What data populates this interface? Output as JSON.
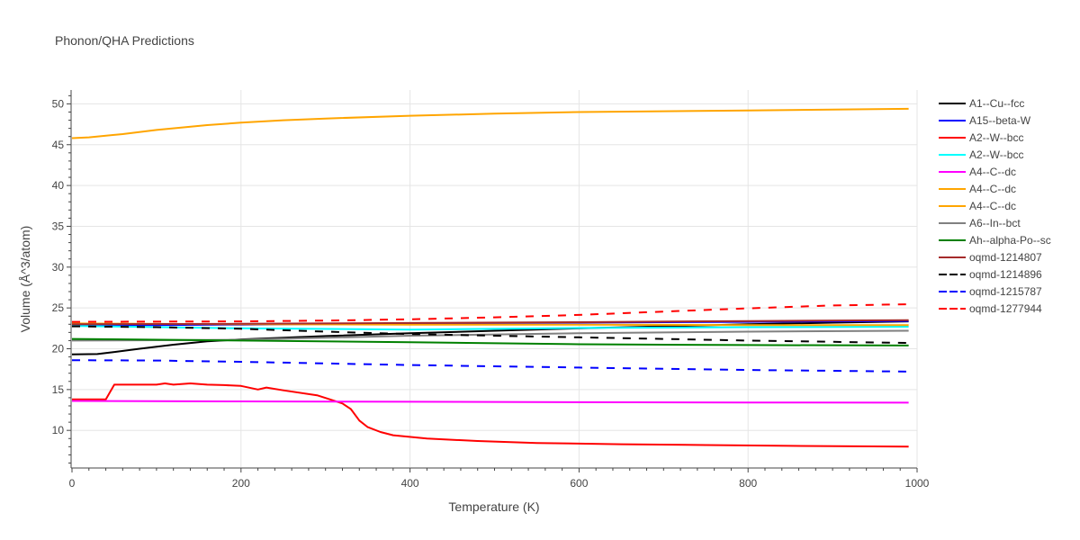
{
  "chart_data": {
    "type": "line",
    "title": "Phonon/QHA Predictions",
    "xlabel": "Temperature (K)",
    "ylabel": "Volume (Å^3/atom)",
    "xlim": [
      0,
      1000
    ],
    "ylim": [
      5.5,
      51.7
    ],
    "x_ticks": [
      0,
      200,
      400,
      600,
      800,
      1000
    ],
    "y_ticks": [
      10,
      15,
      20,
      25,
      30,
      35,
      40,
      45,
      50
    ],
    "grid": true,
    "legend_position": "right",
    "series": [
      {
        "name": "A1--Cu--fcc",
        "color": "#000000",
        "dash": "solid",
        "points": [
          [
            0,
            19.3
          ],
          [
            30,
            19.35
          ],
          [
            50,
            19.6
          ],
          [
            80,
            20.0
          ],
          [
            120,
            20.5
          ],
          [
            160,
            20.9
          ],
          [
            200,
            21.15
          ],
          [
            300,
            21.55
          ],
          [
            400,
            21.9
          ],
          [
            500,
            22.2
          ],
          [
            600,
            22.5
          ],
          [
            700,
            22.75
          ],
          [
            800,
            23.0
          ],
          [
            900,
            23.2
          ],
          [
            990,
            23.35
          ]
        ]
      },
      {
        "name": "A15--beta-W",
        "color": "#0000ff",
        "dash": "solid",
        "points": [
          [
            0,
            22.85
          ],
          [
            200,
            22.95
          ],
          [
            400,
            23.1
          ],
          [
            600,
            23.2
          ],
          [
            800,
            23.3
          ],
          [
            990,
            23.4
          ]
        ]
      },
      {
        "name": "A2--W--bcc",
        "color": "#ff0000",
        "dash": "solid",
        "points": [
          [
            0,
            13.8
          ],
          [
            40,
            13.8
          ],
          [
            50,
            15.6
          ],
          [
            100,
            15.6
          ],
          [
            110,
            15.75
          ],
          [
            120,
            15.6
          ],
          [
            140,
            15.75
          ],
          [
            160,
            15.6
          ],
          [
            180,
            15.55
          ],
          [
            200,
            15.45
          ],
          [
            220,
            15.0
          ],
          [
            230,
            15.25
          ],
          [
            250,
            14.9
          ],
          [
            290,
            14.3
          ],
          [
            305,
            13.8
          ],
          [
            320,
            13.3
          ],
          [
            330,
            12.6
          ],
          [
            340,
            11.2
          ],
          [
            350,
            10.4
          ],
          [
            365,
            9.8
          ],
          [
            380,
            9.4
          ],
          [
            420,
            9.0
          ],
          [
            480,
            8.7
          ],
          [
            550,
            8.45
          ],
          [
            650,
            8.3
          ],
          [
            750,
            8.2
          ],
          [
            850,
            8.1
          ],
          [
            990,
            8.0
          ]
        ]
      },
      {
        "name": "A2--W--bcc",
        "color": "#00ffff",
        "dash": "solid",
        "points": [
          [
            0,
            22.8
          ],
          [
            200,
            22.5
          ],
          [
            400,
            22.35
          ],
          [
            600,
            22.55
          ],
          [
            800,
            22.65
          ],
          [
            990,
            22.7
          ]
        ]
      },
      {
        "name": "A4--C--dc",
        "color": "#ff00ff",
        "dash": "solid",
        "points": [
          [
            0,
            13.6
          ],
          [
            200,
            13.55
          ],
          [
            400,
            13.5
          ],
          [
            600,
            13.45
          ],
          [
            800,
            13.42
          ],
          [
            990,
            13.4
          ]
        ]
      },
      {
        "name": "A4--C--dc",
        "color": "#ffa500",
        "dash": "solid",
        "points": [
          [
            0,
            45.8
          ],
          [
            20,
            45.9
          ],
          [
            60,
            46.3
          ],
          [
            100,
            46.8
          ],
          [
            160,
            47.4
          ],
          [
            200,
            47.7
          ],
          [
            250,
            48.0
          ],
          [
            300,
            48.2
          ],
          [
            400,
            48.55
          ],
          [
            500,
            48.8
          ],
          [
            600,
            49.0
          ],
          [
            700,
            49.1
          ],
          [
            800,
            49.2
          ],
          [
            900,
            49.3
          ],
          [
            990,
            49.4
          ]
        ]
      },
      {
        "name": "A4--C--dc",
        "color": "#ffa500",
        "dash": "solid",
        "points": [
          [
            0,
            23.1
          ],
          [
            200,
            23.0
          ],
          [
            400,
            22.95
          ],
          [
            600,
            22.95
          ],
          [
            800,
            22.9
          ],
          [
            990,
            22.9
          ]
        ]
      },
      {
        "name": "A6--In--bct",
        "color": "#808080",
        "dash": "solid",
        "points": [
          [
            0,
            21.0
          ],
          [
            100,
            21.05
          ],
          [
            200,
            21.1
          ],
          [
            300,
            21.35
          ],
          [
            400,
            21.6
          ],
          [
            600,
            21.9
          ],
          [
            800,
            22.1
          ],
          [
            990,
            22.2
          ]
        ]
      },
      {
        "name": "Ah--alpha-Po--sc",
        "color": "#008000",
        "dash": "solid",
        "points": [
          [
            0,
            21.2
          ],
          [
            200,
            21.0
          ],
          [
            400,
            20.8
          ],
          [
            600,
            20.55
          ],
          [
            800,
            20.45
          ],
          [
            990,
            20.4
          ]
        ]
      },
      {
        "name": "oqmd-1214807",
        "color": "#a52a2a",
        "dash": "solid",
        "points": [
          [
            0,
            23.0
          ],
          [
            200,
            23.05
          ],
          [
            400,
            23.15
          ],
          [
            600,
            23.25
          ],
          [
            800,
            23.4
          ],
          [
            990,
            23.5
          ]
        ]
      },
      {
        "name": "oqmd-1214896",
        "color": "#000000",
        "dash": "dash",
        "points": [
          [
            0,
            22.75
          ],
          [
            100,
            22.65
          ],
          [
            200,
            22.45
          ],
          [
            300,
            22.1
          ],
          [
            400,
            21.8
          ],
          [
            500,
            21.6
          ],
          [
            600,
            21.4
          ],
          [
            700,
            21.2
          ],
          [
            800,
            21.0
          ],
          [
            900,
            20.85
          ],
          [
            990,
            20.7
          ]
        ]
      },
      {
        "name": "oqmd-1215787",
        "color": "#0000ff",
        "dash": "dash",
        "points": [
          [
            0,
            18.6
          ],
          [
            100,
            18.55
          ],
          [
            200,
            18.4
          ],
          [
            300,
            18.2
          ],
          [
            400,
            18.0
          ],
          [
            500,
            17.85
          ],
          [
            600,
            17.7
          ],
          [
            700,
            17.55
          ],
          [
            800,
            17.4
          ],
          [
            900,
            17.3
          ],
          [
            990,
            17.2
          ]
        ]
      },
      {
        "name": "oqmd-1277944",
        "color": "#ff0000",
        "dash": "dash",
        "points": [
          [
            0,
            23.3
          ],
          [
            200,
            23.35
          ],
          [
            300,
            23.45
          ],
          [
            400,
            23.6
          ],
          [
            500,
            23.85
          ],
          [
            600,
            24.15
          ],
          [
            700,
            24.55
          ],
          [
            800,
            24.95
          ],
          [
            900,
            25.3
          ],
          [
            990,
            25.45
          ]
        ]
      }
    ]
  }
}
